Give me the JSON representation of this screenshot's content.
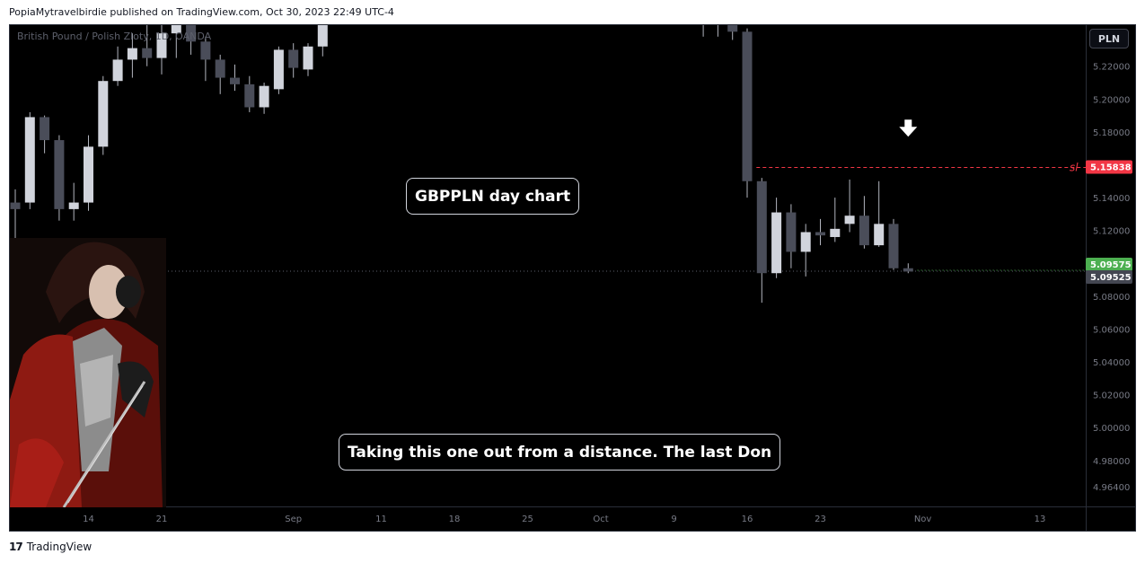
{
  "header": {
    "publisher_line": "PopiaMytravelbirdie published on TradingView.com, Oct 30, 2023 22:49 UTC-4"
  },
  "chart_header": {
    "symbol_text": "British Pound / Polish Zloty, 1D, OANDA",
    "currency_button": "PLN"
  },
  "annotations": {
    "title_note": "GBPPLN day chart",
    "comment_note": "Taking this one out from a distance. The last Don",
    "sl_label": "sl",
    "arrow_icon": "down-arrow-icon"
  },
  "footer": {
    "logo_mark": "17",
    "brand": "TradingView"
  },
  "colors": {
    "background": "#000000",
    "bull_candle": "#d1d4dc",
    "bear_candle": "#4a4d59",
    "wick": "#b2b5be",
    "sl_red": "#f23645",
    "last_green": "#4caf50",
    "price_grey": "#434651"
  },
  "chart_data": {
    "type": "candlestick",
    "symbol": "GBPPLN",
    "timeframe": "1D",
    "ylim": [
      4.952,
      5.245
    ],
    "y_ticks": [
      "5.22000",
      "5.20000",
      "5.18000",
      "5.16000",
      "5.14000",
      "5.12000",
      "5.10000",
      "5.08000",
      "5.06000",
      "5.04000",
      "5.02000",
      "5.00000",
      "4.98000",
      "4.96400"
    ],
    "x_ticks": [
      {
        "label": "14",
        "bar": 5
      },
      {
        "label": "21",
        "bar": 10
      },
      {
        "label": "Sep",
        "bar": 19
      },
      {
        "label": "11",
        "bar": 25
      },
      {
        "label": "18",
        "bar": 30
      },
      {
        "label": "25",
        "bar": 35
      },
      {
        "label": "Oct",
        "bar": 40
      },
      {
        "label": "9",
        "bar": 45
      },
      {
        "label": "16",
        "bar": 50
      },
      {
        "label": "23",
        "bar": 55
      },
      {
        "label": "Nov",
        "bar": 62
      },
      {
        "label": "13",
        "bar": 70
      }
    ],
    "horizontal_lines": [
      {
        "name": "sl",
        "price": 5.15838,
        "label": "5.15838",
        "color": "#f23645",
        "from_bar": 51
      },
      {
        "name": "last-price",
        "price": 5.09575,
        "label": "5.09575",
        "color": "#4caf50",
        "from_bar": 62
      },
      {
        "name": "crosshair",
        "price": 5.09525,
        "label": "5.09525",
        "color": "#434651",
        "from_bar": -1
      }
    ],
    "arrow": {
      "bar": 61,
      "price": 5.182
    },
    "candles": [
      {
        "bar": 0,
        "o": 5.137,
        "h": 5.145,
        "l": 5.114,
        "c": 5.133
      },
      {
        "bar": 1,
        "o": 5.137,
        "h": 5.192,
        "l": 5.133,
        "c": 5.189
      },
      {
        "bar": 2,
        "o": 5.189,
        "h": 5.19,
        "l": 5.167,
        "c": 5.175
      },
      {
        "bar": 3,
        "o": 5.175,
        "h": 5.178,
        "l": 5.126,
        "c": 5.133
      },
      {
        "bar": 4,
        "o": 5.133,
        "h": 5.149,
        "l": 5.126,
        "c": 5.137
      },
      {
        "bar": 5,
        "o": 5.137,
        "h": 5.178,
        "l": 5.132,
        "c": 5.171
      },
      {
        "bar": 6,
        "o": 5.171,
        "h": 5.214,
        "l": 5.166,
        "c": 5.211
      },
      {
        "bar": 7,
        "o": 5.211,
        "h": 5.232,
        "l": 5.208,
        "c": 5.224
      },
      {
        "bar": 8,
        "o": 5.224,
        "h": 5.24,
        "l": 5.213,
        "c": 5.231
      },
      {
        "bar": 9,
        "o": 5.231,
        "h": 5.248,
        "l": 5.22,
        "c": 5.225
      },
      {
        "bar": 10,
        "o": 5.225,
        "h": 5.245,
        "l": 5.215,
        "c": 5.24
      },
      {
        "bar": 11,
        "o": 5.24,
        "h": 5.262,
        "l": 5.225,
        "c": 5.255
      },
      {
        "bar": 12,
        "o": 5.255,
        "h": 5.262,
        "l": 5.227,
        "c": 5.235
      },
      {
        "bar": 13,
        "o": 5.235,
        "h": 5.238,
        "l": 5.211,
        "c": 5.224
      },
      {
        "bar": 14,
        "o": 5.224,
        "h": 5.227,
        "l": 5.203,
        "c": 5.213
      },
      {
        "bar": 15,
        "o": 5.213,
        "h": 5.221,
        "l": 5.205,
        "c": 5.209
      },
      {
        "bar": 16,
        "o": 5.209,
        "h": 5.214,
        "l": 5.192,
        "c": 5.195
      },
      {
        "bar": 17,
        "o": 5.195,
        "h": 5.21,
        "l": 5.191,
        "c": 5.208
      },
      {
        "bar": 18,
        "o": 5.206,
        "h": 5.232,
        "l": 5.203,
        "c": 5.23
      },
      {
        "bar": 19,
        "o": 5.23,
        "h": 5.234,
        "l": 5.213,
        "c": 5.219
      },
      {
        "bar": 20,
        "o": 5.218,
        "h": 5.234,
        "l": 5.214,
        "c": 5.232
      },
      {
        "bar": 21,
        "o": 5.232,
        "h": 5.262,
        "l": 5.226,
        "c": 5.252
      },
      {
        "bar": 47,
        "o": 5.256,
        "h": 5.262,
        "l": 5.238,
        "c": 5.25
      },
      {
        "bar": 48,
        "o": 5.248,
        "h": 5.262,
        "l": 5.238,
        "c": 5.25
      },
      {
        "bar": 49,
        "o": 5.25,
        "h": 5.262,
        "l": 5.236,
        "c": 5.241
      },
      {
        "bar": 50,
        "o": 5.241,
        "h": 5.243,
        "l": 5.14,
        "c": 5.15
      },
      {
        "bar": 51,
        "o": 5.15,
        "h": 5.152,
        "l": 5.076,
        "c": 5.094
      },
      {
        "bar": 52,
        "o": 5.094,
        "h": 5.14,
        "l": 5.091,
        "c": 5.131
      },
      {
        "bar": 53,
        "o": 5.131,
        "h": 5.136,
        "l": 5.097,
        "c": 5.107
      },
      {
        "bar": 54,
        "o": 5.107,
        "h": 5.124,
        "l": 5.092,
        "c": 5.119
      },
      {
        "bar": 55,
        "o": 5.119,
        "h": 5.127,
        "l": 5.111,
        "c": 5.117
      },
      {
        "bar": 56,
        "o": 5.116,
        "h": 5.14,
        "l": 5.113,
        "c": 5.121
      },
      {
        "bar": 57,
        "o": 5.124,
        "h": 5.151,
        "l": 5.119,
        "c": 5.129
      },
      {
        "bar": 58,
        "o": 5.129,
        "h": 5.141,
        "l": 5.109,
        "c": 5.111
      },
      {
        "bar": 59,
        "o": 5.111,
        "h": 5.15,
        "l": 5.11,
        "c": 5.124
      },
      {
        "bar": 60,
        "o": 5.124,
        "h": 5.127,
        "l": 5.096,
        "c": 5.097
      },
      {
        "bar": 61,
        "o": 5.097,
        "h": 5.1,
        "l": 5.094,
        "c": 5.095
      }
    ]
  }
}
